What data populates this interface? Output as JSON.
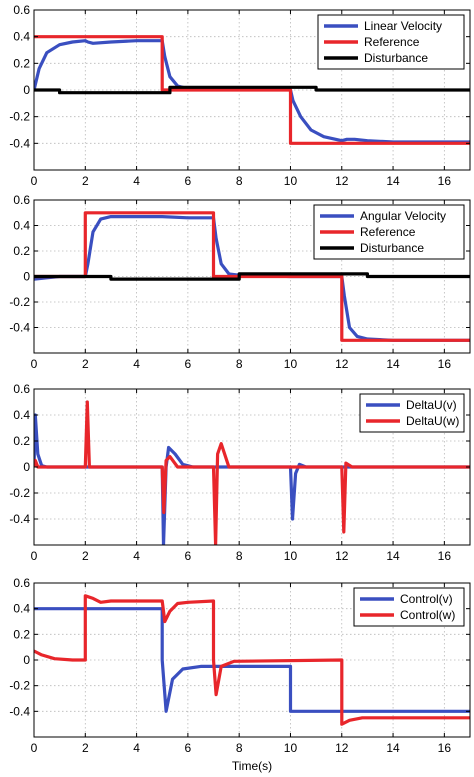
{
  "colors": {
    "blue": "#3a4fc0",
    "red": "#e8262b",
    "black": "#000000",
    "grid": "#b8b8b8"
  },
  "xlabel": "Time(s)",
  "chart_data": [
    {
      "type": "line",
      "xlim": [
        0,
        17
      ],
      "ylim": [
        -0.6,
        0.6
      ],
      "xticks": [
        "0",
        "2",
        "4",
        "6",
        "8",
        "10",
        "12",
        "14",
        "16"
      ],
      "yticks": [
        "-0.4",
        "-0.2",
        "0",
        "0.2",
        "0.4",
        "0.6"
      ],
      "grid": true,
      "legend": "top-right",
      "series": [
        {
          "name": "Linear Velocity",
          "color": "#3a4fc0",
          "x": [
            0,
            0.2,
            0.5,
            1.0,
            1.5,
            2.0,
            2.1,
            2.3,
            3.0,
            4.0,
            5.0,
            5.1,
            5.3,
            5.6,
            6.0,
            7.0,
            8.0,
            9.0,
            10.0,
            10.1,
            10.4,
            10.8,
            11.3,
            12.0,
            12.2,
            12.5,
            13.0,
            14.0,
            17.0
          ],
          "y": [
            0,
            0.16,
            0.28,
            0.34,
            0.36,
            0.37,
            0.36,
            0.35,
            0.36,
            0.37,
            0.37,
            0.25,
            0.1,
            0.03,
            0.01,
            0.01,
            0.01,
            0.01,
            0.0,
            -0.08,
            -0.2,
            -0.3,
            -0.35,
            -0.38,
            -0.37,
            -0.37,
            -0.38,
            -0.39,
            -0.39
          ]
        },
        {
          "name": "Reference",
          "color": "#e8262b",
          "x": [
            0,
            5,
            5,
            10,
            10,
            17
          ],
          "y": [
            0.4,
            0.4,
            0,
            0,
            -0.4,
            -0.4
          ]
        },
        {
          "name": "Disturbance",
          "color": "#000000",
          "x": [
            0,
            1,
            1,
            5.3,
            5.3,
            11,
            11,
            17
          ],
          "y": [
            0,
            0,
            -0.02,
            -0.02,
            0.02,
            0.02,
            0,
            0
          ]
        }
      ]
    },
    {
      "type": "line",
      "xlim": [
        0,
        17
      ],
      "ylim": [
        -0.6,
        0.6
      ],
      "xticks": [
        "0",
        "2",
        "4",
        "6",
        "8",
        "10",
        "12",
        "14",
        "16"
      ],
      "yticks": [
        "-0.4",
        "-0.2",
        "0",
        "0.2",
        "0.4",
        "0.6"
      ],
      "grid": true,
      "legend": "top-right",
      "series": [
        {
          "name": "Angular Velocity",
          "color": "#3a4fc0",
          "x": [
            0,
            0.5,
            1,
            2.0,
            2.1,
            2.3,
            2.6,
            3.0,
            4.0,
            5.0,
            6.0,
            7.0,
            7.1,
            7.3,
            7.6,
            8.0,
            10.0,
            12.0,
            12.1,
            12.3,
            12.6,
            13.0,
            14.0,
            17.0
          ],
          "y": [
            -0.02,
            -0.01,
            0,
            0.0,
            0.1,
            0.35,
            0.45,
            0.47,
            0.47,
            0.47,
            0.46,
            0.46,
            0.3,
            0.1,
            0.02,
            0.01,
            0.0,
            0.0,
            -0.15,
            -0.4,
            -0.47,
            -0.49,
            -0.5,
            -0.5
          ]
        },
        {
          "name": "Reference",
          "color": "#e8262b",
          "x": [
            0,
            2,
            2,
            7,
            7,
            12,
            12,
            17
          ],
          "y": [
            0,
            0,
            0.5,
            0.5,
            0,
            0,
            -0.5,
            -0.5
          ]
        },
        {
          "name": "Disturbance",
          "color": "#000000",
          "x": [
            0,
            3,
            3,
            8,
            8,
            13,
            13,
            17
          ],
          "y": [
            0,
            0,
            -0.02,
            -0.02,
            0.02,
            0.02,
            0,
            0
          ]
        }
      ]
    },
    {
      "type": "line",
      "xlim": [
        0,
        17
      ],
      "ylim": [
        -0.6,
        0.6
      ],
      "xticks": [
        "0",
        "2",
        "4",
        "6",
        "8",
        "10",
        "12",
        "14",
        "16"
      ],
      "yticks": [
        "-0.4",
        "-0.2",
        "0",
        "0.2",
        "0.4",
        "0.6"
      ],
      "grid": true,
      "legend": "top-right",
      "series": [
        {
          "name": "DeltaU(v)",
          "color": "#3a4fc0",
          "x": [
            0,
            0.05,
            0.15,
            0.3,
            0.5,
            5.0,
            5.05,
            5.15,
            5.25,
            5.5,
            5.8,
            6.2,
            10.0,
            10.08,
            10.2,
            10.35,
            10.6,
            17.0
          ],
          "y": [
            0.0,
            0.4,
            0.1,
            0.01,
            0.0,
            0.0,
            -0.6,
            0.0,
            0.15,
            0.1,
            0.02,
            0.0,
            0.0,
            -0.4,
            -0.05,
            0.02,
            0.0,
            0.0
          ]
        },
        {
          "name": "DeltaU(w)",
          "color": "#e8262b",
          "x": [
            0,
            0.05,
            0.15,
            0.4,
            2.0,
            2.08,
            2.16,
            2.4,
            5.0,
            5.06,
            5.15,
            5.3,
            5.6,
            7.0,
            7.08,
            7.16,
            7.3,
            7.6,
            12.0,
            12.08,
            12.16,
            12.4,
            17.0
          ],
          "y": [
            0.0,
            0.05,
            0.0,
            0.0,
            0.0,
            0.5,
            0.0,
            0.0,
            0.0,
            -0.35,
            0.05,
            0.08,
            0.0,
            0.0,
            -0.6,
            0.1,
            0.18,
            0.0,
            0.0,
            -0.5,
            0.03,
            0.0,
            0.0
          ]
        }
      ]
    },
    {
      "type": "line",
      "xlim": [
        0,
        17
      ],
      "ylim": [
        -0.6,
        0.6
      ],
      "xticks": [
        "0",
        "2",
        "4",
        "6",
        "8",
        "10",
        "12",
        "14",
        "16"
      ],
      "yticks": [
        "-0.4",
        "-0.2",
        "0",
        "0.2",
        "0.4",
        "0.6"
      ],
      "grid": true,
      "legend": "top-right",
      "series": [
        {
          "name": "Control(v)",
          "color": "#3a4fc0",
          "x": [
            0,
            5.0,
            5.0,
            5.15,
            5.4,
            5.8,
            6.5,
            7.0,
            7.5,
            10.0,
            10.0,
            17.0
          ],
          "y": [
            0.4,
            0.4,
            0.0,
            -0.4,
            -0.15,
            -0.07,
            -0.05,
            -0.05,
            -0.05,
            -0.05,
            -0.4,
            -0.4
          ]
        },
        {
          "name": "Control(w)",
          "color": "#e8262b",
          "x": [
            0,
            0.3,
            0.8,
            1.5,
            2.0,
            2.0,
            2.3,
            2.6,
            3.0,
            5.0,
            5.1,
            5.3,
            5.6,
            6.0,
            7.0,
            7.0,
            7.1,
            7.3,
            7.8,
            12.0,
            12.0,
            12.3,
            12.8,
            17.0
          ],
          "y": [
            0.07,
            0.04,
            0.01,
            0.0,
            0.0,
            0.5,
            0.48,
            0.45,
            0.46,
            0.46,
            0.3,
            0.38,
            0.44,
            0.45,
            0.46,
            0.0,
            -0.27,
            -0.05,
            -0.01,
            0.0,
            -0.5,
            -0.47,
            -0.45,
            -0.45
          ]
        }
      ]
    }
  ]
}
